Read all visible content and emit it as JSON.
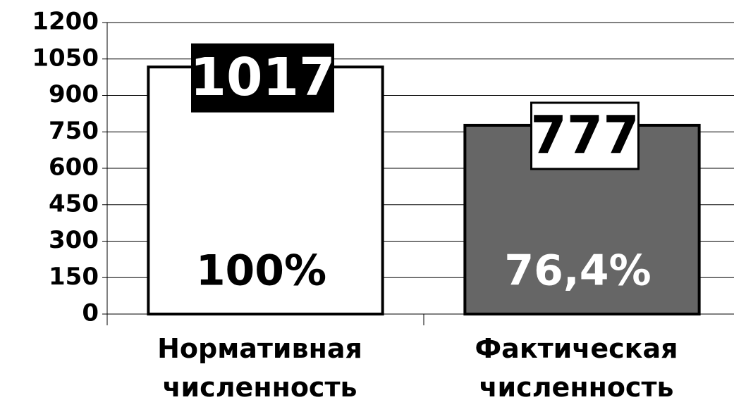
{
  "chart_data": {
    "type": "bar",
    "categories": [
      "Нормативная численность",
      "Фактическая численность"
    ],
    "values": [
      1017,
      777
    ],
    "colors": [
      "#ffffff",
      "#666666"
    ],
    "annotations": [
      "100%",
      "76,4%"
    ],
    "ylim": [
      0,
      1200
    ],
    "yticks": [
      0,
      150,
      300,
      450,
      600,
      750,
      900,
      1050,
      1200
    ],
    "grid": true
  }
}
